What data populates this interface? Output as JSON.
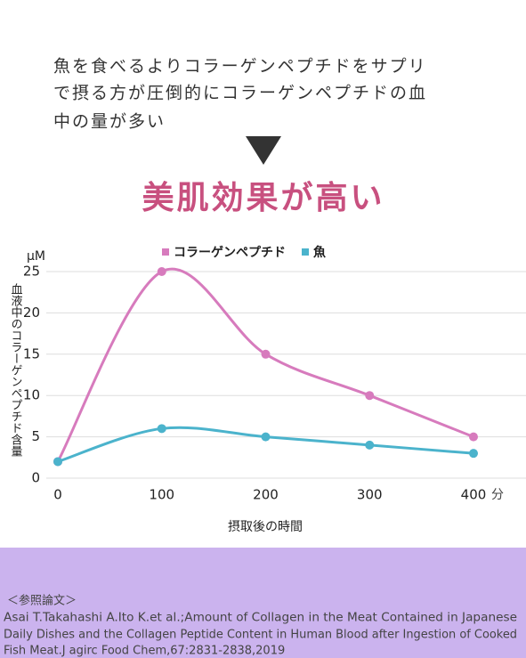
{
  "intro": [
    "魚を食べるよりコラーゲンペプチドをサプリ",
    "で摂る方が圧倒的にコラーゲンペプチドの血",
    "中の量が多い"
  ],
  "headline": "美肌効果が高い",
  "chart_data": {
    "type": "line",
    "x_label": "摂取後の時間",
    "x_unit": "分",
    "y_label": "血液中のコラーゲンペプチド含量",
    "y_unit": "μM",
    "x": [
      0,
      100,
      200,
      300,
      400
    ],
    "series": [
      {
        "name": "コラーゲンペプチド",
        "color": "#d77bbd",
        "values": [
          2,
          25,
          15,
          10,
          5
        ]
      },
      {
        "name": "魚",
        "color": "#4bb3cc",
        "values": [
          2,
          6,
          5,
          4,
          3
        ]
      }
    ],
    "xlim": [
      0,
      400
    ],
    "xticks": [
      0,
      100,
      200,
      300,
      400
    ],
    "ylim": [
      0,
      25
    ],
    "yticks": [
      0,
      5,
      10,
      15,
      20,
      25
    ],
    "grid": true,
    "smooth": true
  },
  "reference": {
    "heading": "＜参照論文＞",
    "lines": [
      "Asai T.Takahashi A.Ito K.et al.;Amount of Collagen in the Meat Contained in Japanese",
      "Daily Dishes and the Collagen Peptide Content in Human Blood after Ingestion of Cooked",
      "Fish Meat.J agirc Food Chem,67:2831-2838,2019"
    ]
  }
}
